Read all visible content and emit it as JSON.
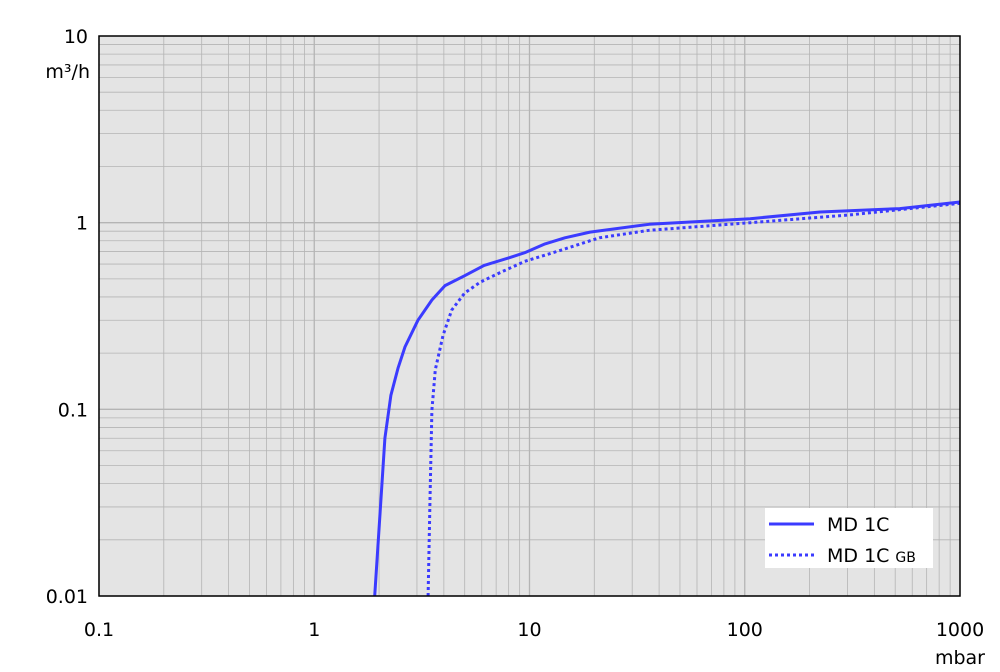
{
  "chart_data": {
    "type": "line",
    "title": "",
    "xlabel": "mbar",
    "ylabel": "m³/h",
    "x_scale": "log",
    "y_scale": "log",
    "xlim": [
      0.1,
      1000
    ],
    "ylim": [
      0.01,
      10
    ],
    "x_ticks": [
      "0.1",
      "1",
      "10",
      "100",
      "1000"
    ],
    "y_ticks": [
      "0.01",
      "0.1",
      "1",
      "10"
    ],
    "grid": true,
    "legend_position": "bottom-right",
    "colors": {
      "plot_background": "#e4e4e4",
      "grid": "#b4b4b4",
      "series": "#3b3bff"
    },
    "series": [
      {
        "name": "MD 1C",
        "style": "solid",
        "x": [
          1.91,
          2.13,
          2.27,
          2.45,
          2.64,
          3.03,
          3.52,
          4.05,
          5.0,
          6.15,
          8.1,
          9.5,
          11.8,
          14.6,
          19.1,
          36,
          106,
          224,
          525,
          1000
        ],
        "y": [
          0.01,
          0.07,
          0.119,
          0.166,
          0.216,
          0.3,
          0.385,
          0.46,
          0.52,
          0.59,
          0.65,
          0.69,
          0.77,
          0.83,
          0.89,
          0.98,
          1.05,
          1.14,
          1.19,
          1.29
        ]
      },
      {
        "name": "MD 1C",
        "name_suffix": "GB",
        "style": "dotted",
        "x": [
          3.38,
          3.45,
          3.52,
          3.65,
          3.97,
          4.35,
          5.0,
          5.9,
          7.3,
          9.5,
          13.9,
          21.1,
          36,
          106,
          308,
          1000
        ],
        "y": [
          0.01,
          0.033,
          0.099,
          0.163,
          0.25,
          0.34,
          0.42,
          0.48,
          0.54,
          0.62,
          0.71,
          0.83,
          0.91,
          1.0,
          1.1,
          1.27
        ]
      }
    ]
  }
}
